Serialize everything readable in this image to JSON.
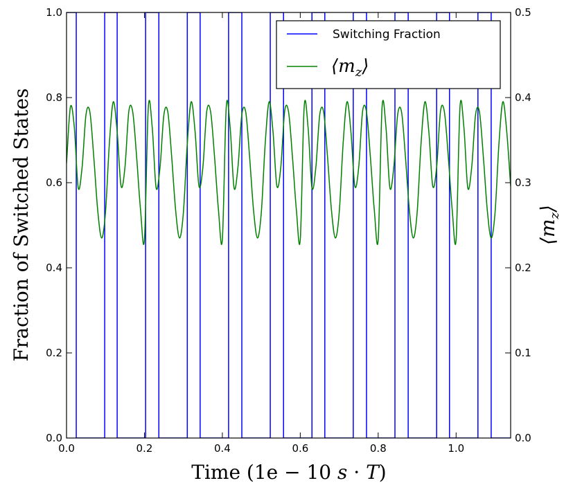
{
  "chart_data": {
    "type": "line",
    "xlabel": "Time (1e − 10 s·T)",
    "ylabel": "Fraction of Switched States",
    "ylabel_right": "⟨m_z⟩",
    "xlim": [
      0.0,
      1.14
    ],
    "ylim": [
      0.0,
      1.0
    ],
    "ylim_right": [
      0.0,
      0.5
    ],
    "x_ticks": [
      "0.0",
      "0.2",
      "0.4",
      "0.6",
      "0.8",
      "1.0"
    ],
    "y_ticks": [
      "0.0",
      "0.2",
      "0.4",
      "0.6",
      "0.8",
      "1.0"
    ],
    "y_ticks_right": [
      "0.0",
      "0.1",
      "0.2",
      "0.3",
      "0.4",
      "0.5"
    ],
    "grid": false,
    "legend_position": "top-right",
    "series": [
      {
        "name": "Switching Fraction",
        "color": "#0000ff",
        "axis": "left",
        "step": true,
        "transitions": [
          0.025,
          0.098,
          0.13,
          0.203,
          0.237,
          0.31,
          0.343,
          0.416,
          0.45,
          0.523,
          0.557,
          0.63,
          0.663,
          0.736,
          0.77,
          0.843,
          0.877,
          0.95,
          0.983,
          1.056,
          1.09
        ],
        "initial_value": 1.0
      },
      {
        "name": "⟨m_z⟩",
        "color": "#008000",
        "axis": "right",
        "pattern_period": 0.2,
        "x": [
          0.0,
          0.01,
          0.02,
          0.03,
          0.04,
          0.05,
          0.06,
          0.07,
          0.08,
          0.09,
          0.1,
          0.11,
          0.12,
          0.13,
          0.14,
          0.15,
          0.16,
          0.17,
          0.18,
          0.19,
          0.2
        ],
        "y": [
          0.323,
          0.389,
          0.365,
          0.294,
          0.318,
          0.38,
          0.383,
          0.33,
          0.268,
          0.235,
          0.265,
          0.346,
          0.395,
          0.36,
          0.296,
          0.318,
          0.384,
          0.383,
          0.33,
          0.268,
          0.233
        ]
      }
    ]
  },
  "legend": {
    "switching_label": "Switching Fraction",
    "mz_label_main": "⟨m",
    "mz_label_sub": "z",
    "mz_label_close": "⟩"
  },
  "labels": {
    "x_title_plain": "Time (1e − 10 ",
    "x_title_italic_s": "s",
    "x_title_dot": " · ",
    "x_title_italic_T": "T",
    "x_title_close": ")",
    "ylabel": "Fraction of Switched States",
    "right_label_main": "⟨m",
    "right_label_sub": "z",
    "right_label_close": "⟩"
  }
}
